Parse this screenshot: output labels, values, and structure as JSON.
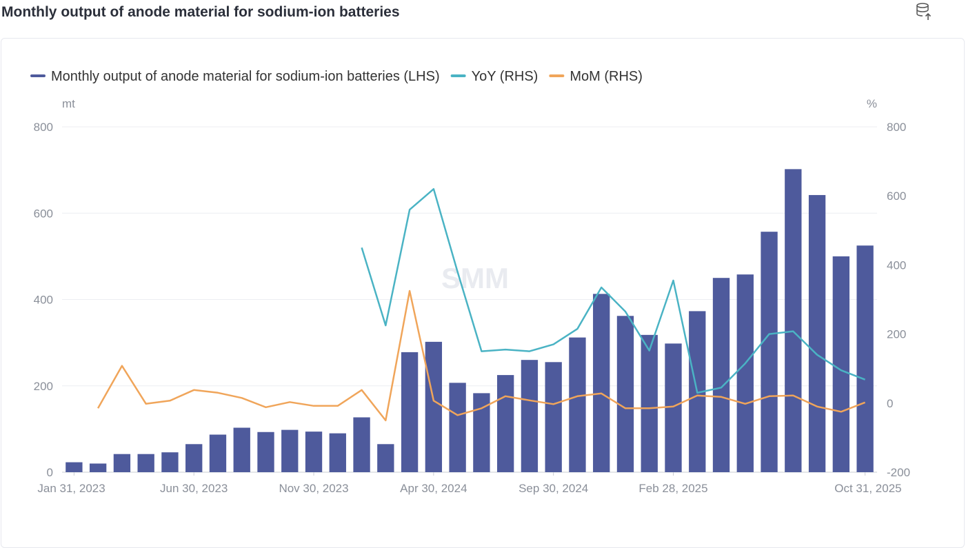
{
  "page": {
    "title": "Monthly output of anode material for sodium-ion batteries",
    "export_icon": "database-export-icon"
  },
  "chart_data": {
    "type": "bar",
    "watermark": "SMM",
    "legend_placement": "top-left",
    "grid": true,
    "x_tick_labels": [
      "Jan 31, 2023",
      "Jun 30, 2023",
      "Nov 30, 2023",
      "Apr 30, 2024",
      "Sep 30, 2024",
      "Feb 28, 2025",
      "Oct 31, 2025"
    ],
    "y_left": {
      "unit": "mt",
      "ticks": [
        "0",
        "200",
        "400",
        "600",
        "800"
      ],
      "range": [
        0,
        800
      ]
    },
    "y_right": {
      "unit": "%",
      "ticks": [
        "-200",
        "0",
        "200",
        "400",
        "600",
        "800"
      ],
      "range": [
        -200,
        800
      ]
    },
    "categories": [
      "Jan 31, 2023",
      "Feb 28, 2023",
      "Mar 31, 2023",
      "Apr 30, 2023",
      "May 31, 2023",
      "Jun 30, 2023",
      "Jul 31, 2023",
      "Aug 31, 2023",
      "Sep 30, 2023",
      "Oct 31, 2023",
      "Nov 30, 2023",
      "Dec 31, 2023",
      "Jan 31, 2024",
      "Feb 29, 2024",
      "Mar 31, 2024",
      "Apr 30, 2024",
      "May 31, 2024",
      "Jun 30, 2024",
      "Jul 31, 2024",
      "Aug 31, 2024",
      "Sep 30, 2024",
      "Oct 31, 2024",
      "Nov 30, 2024",
      "Dec 31, 2024",
      "Jan 31, 2025",
      "Feb 28, 2025",
      "Mar 31, 2025",
      "Apr 30, 2025",
      "May 31, 2025",
      "Jun 30, 2025",
      "Jul 31, 2025",
      "Aug 31, 2025",
      "Sep 30, 2025",
      "Oct 31, 2025"
    ],
    "series": [
      {
        "name": "Monthly  output of anode material for sodium-ion batteries (LHS)",
        "type": "bar",
        "axis": "left",
        "color": "#4e5a9c",
        "values": [
          23,
          20,
          42,
          42,
          46,
          65,
          87,
          103,
          93,
          98,
          94,
          90,
          127,
          65,
          278,
          302,
          207,
          183,
          225,
          260,
          255,
          312,
          413,
          362,
          318,
          298,
          373,
          450,
          458,
          557,
          702,
          642,
          500,
          525
        ]
      },
      {
        "name": "YoY (RHS)",
        "type": "line",
        "axis": "right",
        "color": "#4ab3c4",
        "values": [
          null,
          null,
          null,
          null,
          null,
          null,
          null,
          null,
          null,
          null,
          null,
          null,
          450,
          225,
          560,
          620,
          380,
          150,
          155,
          150,
          170,
          215,
          335,
          265,
          152,
          355,
          30,
          45,
          115,
          200,
          208,
          140,
          95,
          68
        ]
      },
      {
        "name": "MoM (RHS)",
        "type": "line",
        "axis": "right",
        "color": "#f0a55a",
        "values": [
          null,
          -15,
          108,
          -2,
          7,
          38,
          30,
          15,
          -12,
          3,
          -8,
          -8,
          38,
          -50,
          325,
          7,
          -35,
          -15,
          20,
          8,
          -3,
          20,
          28,
          -15,
          -15,
          -10,
          22,
          18,
          -2,
          20,
          22,
          -10,
          -25,
          2
        ]
      }
    ]
  }
}
